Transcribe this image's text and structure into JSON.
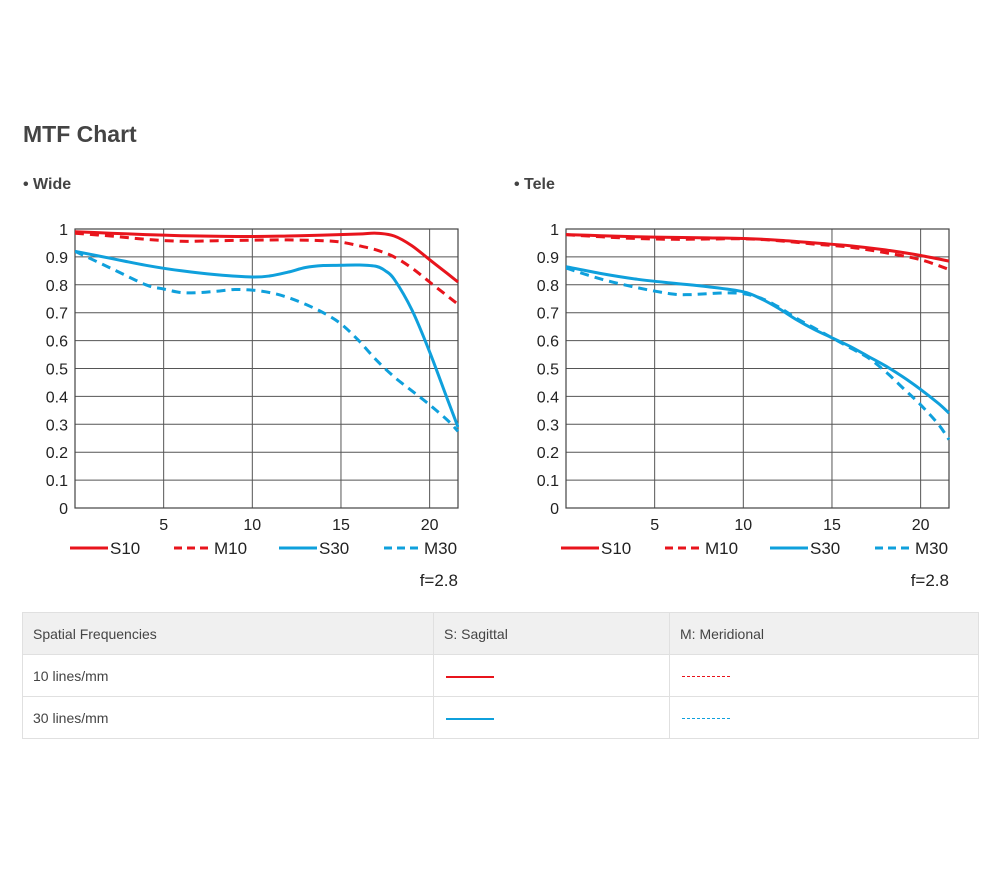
{
  "page": {
    "title": "MTF Chart"
  },
  "chart_data": [
    {
      "type": "line",
      "title": "• Wide",
      "xlim": [
        0,
        21.6
      ],
      "ylim": [
        0,
        1
      ],
      "x_ticks": [
        5,
        10,
        15,
        20
      ],
      "y_ticks": [
        0,
        0.1,
        0.2,
        0.3,
        0.4,
        0.5,
        0.6,
        0.7,
        0.8,
        0.9,
        1
      ],
      "y_tick_labels": [
        "0",
        "0.1",
        "0.2",
        "0.3",
        "0.4",
        "0.5",
        "0.6",
        "0.7",
        "0.8",
        "0.9",
        "1"
      ],
      "grid": true,
      "aperture": "f=2.8",
      "series": [
        {
          "name": "S10",
          "color": "#e8141c",
          "dashed": false,
          "x": [
            0,
            2,
            4,
            6,
            8,
            10,
            12,
            14,
            16,
            17,
            18,
            19,
            20,
            21,
            21.6
          ],
          "y": [
            0.99,
            0.985,
            0.98,
            0.976,
            0.974,
            0.973,
            0.975,
            0.978,
            0.982,
            0.985,
            0.975,
            0.94,
            0.89,
            0.84,
            0.81
          ]
        },
        {
          "name": "M10",
          "color": "#e8141c",
          "dashed": true,
          "x": [
            0,
            2,
            4,
            6,
            8,
            10,
            12,
            14,
            15,
            16,
            17,
            18,
            19,
            20,
            21,
            21.6
          ],
          "y": [
            0.985,
            0.975,
            0.963,
            0.956,
            0.958,
            0.96,
            0.961,
            0.958,
            0.953,
            0.94,
            0.925,
            0.9,
            0.86,
            0.81,
            0.76,
            0.73
          ]
        },
        {
          "name": "S30",
          "color": "#0fa0dc",
          "dashed": false,
          "x": [
            0,
            2,
            4,
            6,
            8,
            10,
            11,
            12,
            13,
            14,
            15,
            16,
            17,
            17.5,
            18,
            19,
            20,
            21,
            21.6
          ],
          "y": [
            0.92,
            0.895,
            0.87,
            0.85,
            0.836,
            0.828,
            0.832,
            0.845,
            0.862,
            0.869,
            0.87,
            0.871,
            0.866,
            0.85,
            0.82,
            0.71,
            0.56,
            0.39,
            0.29
          ]
        },
        {
          "name": "M30",
          "color": "#0fa0dc",
          "dashed": true,
          "x": [
            0,
            2,
            4,
            5,
            6,
            7,
            8,
            9,
            10,
            11,
            12,
            13,
            14,
            15,
            16,
            17,
            18,
            19,
            20,
            21,
            21.6
          ],
          "y": [
            0.92,
            0.86,
            0.8,
            0.785,
            0.772,
            0.772,
            0.777,
            0.783,
            0.781,
            0.772,
            0.755,
            0.73,
            0.7,
            0.66,
            0.6,
            0.53,
            0.47,
            0.42,
            0.37,
            0.315,
            0.275
          ]
        }
      ]
    },
    {
      "type": "line",
      "title": "• Tele",
      "xlim": [
        0,
        21.6
      ],
      "ylim": [
        0,
        1
      ],
      "x_ticks": [
        5,
        10,
        15,
        20
      ],
      "y_ticks": [
        0,
        0.1,
        0.2,
        0.3,
        0.4,
        0.5,
        0.6,
        0.7,
        0.8,
        0.9,
        1
      ],
      "y_tick_labels": [
        "0",
        "0.1",
        "0.2",
        "0.3",
        "0.4",
        "0.5",
        "0.6",
        "0.7",
        "0.8",
        "0.9",
        "1"
      ],
      "grid": true,
      "aperture": "f=2.8",
      "series": [
        {
          "name": "S10",
          "color": "#e8141c",
          "dashed": false,
          "x": [
            0,
            2,
            4,
            6,
            8,
            10,
            12,
            14,
            16,
            18,
            20,
            21.6
          ],
          "y": [
            0.98,
            0.976,
            0.972,
            0.97,
            0.968,
            0.966,
            0.96,
            0.95,
            0.94,
            0.925,
            0.905,
            0.885
          ]
        },
        {
          "name": "M10",
          "color": "#e8141c",
          "dashed": true,
          "x": [
            0,
            2,
            4,
            6,
            8,
            10,
            12,
            14,
            16,
            18,
            20,
            21.6
          ],
          "y": [
            0.98,
            0.972,
            0.966,
            0.963,
            0.964,
            0.965,
            0.958,
            0.946,
            0.935,
            0.915,
            0.89,
            0.855
          ]
        },
        {
          "name": "S30",
          "color": "#0fa0dc",
          "dashed": false,
          "x": [
            0,
            2,
            4,
            6,
            8,
            10,
            11,
            12,
            13,
            14,
            15,
            16,
            17,
            18,
            19,
            20,
            21,
            21.6
          ],
          "y": [
            0.865,
            0.84,
            0.82,
            0.806,
            0.793,
            0.775,
            0.75,
            0.715,
            0.675,
            0.64,
            0.61,
            0.58,
            0.545,
            0.51,
            0.47,
            0.425,
            0.375,
            0.34
          ]
        },
        {
          "name": "M30",
          "color": "#0fa0dc",
          "dashed": true,
          "x": [
            0,
            2,
            4,
            6,
            7,
            8,
            9,
            10,
            11,
            12,
            13,
            14,
            15,
            16,
            17,
            18,
            19,
            20,
            21,
            21.6
          ],
          "y": [
            0.86,
            0.82,
            0.79,
            0.767,
            0.765,
            0.768,
            0.771,
            0.768,
            0.752,
            0.72,
            0.68,
            0.645,
            0.61,
            0.575,
            0.54,
            0.49,
            0.43,
            0.37,
            0.3,
            0.245
          ]
        }
      ]
    }
  ],
  "table": {
    "headers": [
      "Spatial Frequencies",
      "S: Sagittal",
      "M: Meridional"
    ],
    "rows": [
      {
        "label": "10 lines/mm",
        "sagittal_color": "#e8141c",
        "meridional_color": "#e8141c"
      },
      {
        "label": "30 lines/mm",
        "sagittal_color": "#0fa0dc",
        "meridional_color": "#0fa0dc"
      }
    ]
  }
}
